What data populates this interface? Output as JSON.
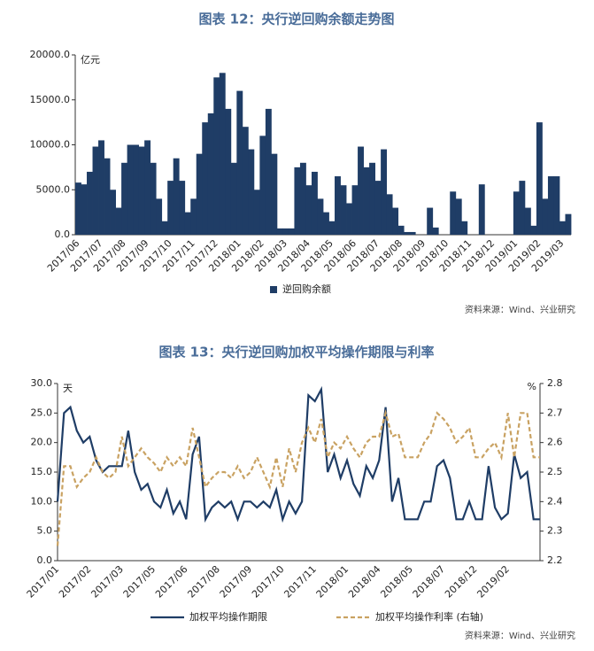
{
  "chart_data": [
    {
      "type": "bar",
      "title": "图表 12：央行逆回购余额走势图",
      "y_unit": "亿元",
      "source": "资料来源：Wind、兴业研究",
      "categories": [
        "2017/06",
        null,
        null,
        null,
        "2017/07",
        null,
        null,
        null,
        "2017/08",
        null,
        null,
        null,
        "2017/09",
        null,
        null,
        null,
        "2017/10",
        null,
        null,
        null,
        "2017/11",
        null,
        null,
        null,
        "2017/12",
        null,
        null,
        null,
        "2018/01",
        null,
        null,
        null,
        "2018/02",
        null,
        null,
        null,
        "2018/03",
        null,
        null,
        null,
        "2018/04",
        null,
        null,
        null,
        "2018/05",
        null,
        null,
        null,
        "2018/06",
        null,
        null,
        null,
        "2018/07",
        null,
        null,
        null,
        "2018/08",
        null,
        null,
        null,
        "2018/09",
        null,
        null,
        null,
        "2018/10",
        null,
        null,
        null,
        "2018/11",
        null,
        null,
        null,
        "2018/12",
        null,
        null,
        null,
        "2019/01",
        null,
        null,
        null,
        "2019/02",
        null,
        null,
        null,
        "2019/03",
        null
      ],
      "series": [
        {
          "name": "逆回购余额",
          "color": "#1f3d66",
          "values": [
            5800,
            5600,
            7000,
            9800,
            10500,
            8500,
            5000,
            3000,
            8000,
            10000,
            10000,
            9800,
            10500,
            8000,
            4000,
            1500,
            6000,
            8500,
            6000,
            2500,
            4000,
            9000,
            12500,
            13500,
            17500,
            18000,
            14000,
            8000,
            16000,
            12000,
            9500,
            5000,
            11000,
            14000,
            9000,
            700,
            700,
            700,
            7500,
            8000,
            5500,
            7000,
            4000,
            2500,
            1500,
            6500,
            5500,
            3500,
            5500,
            9800,
            7500,
            8000,
            6000,
            9500,
            4500,
            3000,
            1000,
            300,
            300,
            0,
            0,
            3000,
            800,
            0,
            0,
            4800,
            4000,
            1500,
            0,
            0,
            5600,
            0,
            0,
            0,
            0,
            0,
            4800,
            6000,
            3000,
            1000,
            12500,
            4000,
            6500,
            6500,
            1500,
            2300
          ]
        }
      ],
      "ylim": [
        0,
        20000
      ],
      "yticks": [
        {
          "value": 0,
          "label": "0.0"
        },
        {
          "value": 5000,
          "label": "5000.0"
        },
        {
          "value": 10000,
          "label": "10000.0"
        },
        {
          "value": 15000,
          "label": "15000.0"
        },
        {
          "value": 20000,
          "label": "20000.0"
        }
      ]
    },
    {
      "type": "line",
      "title": "图表 13：央行逆回购加权平均操作期限与利率",
      "y_unit": "天",
      "y2_unit": "%",
      "source": "资料来源：Wind、兴业研究",
      "categories": [
        "2017/01",
        null,
        null,
        null,
        null,
        "2017/02",
        null,
        null,
        null,
        null,
        "2017/03",
        null,
        null,
        null,
        null,
        "2017/05",
        null,
        null,
        null,
        null,
        "2017/06",
        null,
        null,
        null,
        null,
        "2017/08",
        null,
        null,
        null,
        null,
        "2017/09",
        null,
        null,
        null,
        null,
        "2017/10",
        null,
        null,
        null,
        null,
        "2017/11",
        null,
        null,
        null,
        null,
        "2018/01",
        null,
        null,
        null,
        null,
        "2018/04",
        null,
        null,
        null,
        null,
        "2018/05",
        null,
        null,
        null,
        null,
        "2018/07",
        null,
        null,
        null,
        null,
        "2018/12",
        null,
        null,
        null,
        null,
        "2019/02",
        null,
        null,
        null,
        null,
        null
      ],
      "series": [
        {
          "name": "加权平均操作期限",
          "color": "#1f3d66",
          "values": [
            10,
            25,
            26,
            22,
            20,
            21,
            17,
            15,
            16,
            16,
            16,
            22,
            15,
            12,
            13,
            10,
            9,
            12,
            8,
            10,
            7,
            18,
            21,
            7,
            9,
            10,
            9,
            10,
            7,
            10,
            10,
            9,
            10,
            9,
            12,
            7,
            10,
            8,
            10,
            28,
            27,
            29,
            15,
            18,
            14,
            17,
            13,
            11,
            16,
            14,
            17,
            26,
            10,
            14,
            7,
            7,
            7,
            10,
            10,
            16,
            17,
            14,
            7,
            7,
            10,
            7,
            7,
            16,
            9,
            7,
            8,
            18,
            14,
            15,
            7,
            7
          ]
        },
        {
          "name": "加权平均操作利率 (右轴)",
          "color": "#c9a262",
          "axis": "y2",
          "dashed": true,
          "values": [
            2.25,
            2.52,
            2.52,
            2.45,
            2.48,
            2.5,
            2.55,
            2.5,
            2.48,
            2.5,
            2.62,
            2.52,
            2.55,
            2.58,
            2.55,
            2.53,
            2.5,
            2.55,
            2.52,
            2.55,
            2.52,
            2.65,
            2.55,
            2.45,
            2.48,
            2.5,
            2.5,
            2.48,
            2.52,
            2.48,
            2.5,
            2.55,
            2.5,
            2.45,
            2.55,
            2.45,
            2.58,
            2.5,
            2.6,
            2.65,
            2.6,
            2.68,
            2.55,
            2.6,
            2.58,
            2.62,
            2.58,
            2.55,
            2.6,
            2.62,
            2.62,
            2.7,
            2.62,
            2.63,
            2.55,
            2.55,
            2.55,
            2.6,
            2.63,
            2.7,
            2.68,
            2.65,
            2.6,
            2.62,
            2.65,
            2.55,
            2.55,
            2.58,
            2.6,
            2.55,
            2.7,
            2.55,
            2.7,
            2.7,
            2.55,
            2.55
          ]
        }
      ],
      "ylim": [
        0,
        30
      ],
      "yticks": [
        {
          "value": 0,
          "label": "0.0"
        },
        {
          "value": 5,
          "label": "5.0"
        },
        {
          "value": 10,
          "label": "10.0"
        },
        {
          "value": 15,
          "label": "15.0"
        },
        {
          "value": 20,
          "label": "20.0"
        },
        {
          "value": 25,
          "label": "25.0"
        },
        {
          "value": 30,
          "label": "30.0"
        }
      ],
      "y2lim": [
        2.2,
        2.8
      ],
      "y2ticks": [
        2.2,
        2.3,
        2.4,
        2.5,
        2.6,
        2.7,
        2.8
      ]
    }
  ]
}
